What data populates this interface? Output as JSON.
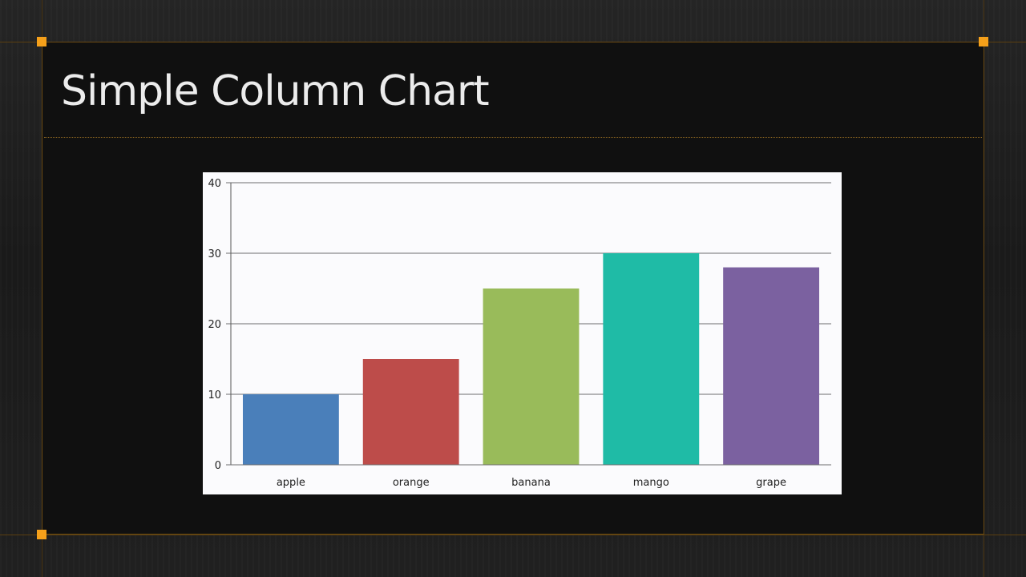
{
  "slide": {
    "title": "Simple Column Chart"
  },
  "colors": {
    "accent": "#f5a01a",
    "slide_background": "#101010",
    "title_text": "#ececec"
  },
  "chart_data": {
    "type": "bar",
    "categories": [
      "apple",
      "orange",
      "banana",
      "mango",
      "grape"
    ],
    "values": [
      10,
      15,
      25,
      30,
      28
    ],
    "colors": [
      "#4a7fba",
      "#bd4c4a",
      "#99bb5a",
      "#1fbba6",
      "#7b61a0"
    ],
    "title": "",
    "xlabel": "",
    "ylabel": "",
    "ylim": [
      0,
      40
    ],
    "yticks": [
      0,
      10,
      20,
      30,
      40
    ],
    "grid": true,
    "legend": "none"
  }
}
